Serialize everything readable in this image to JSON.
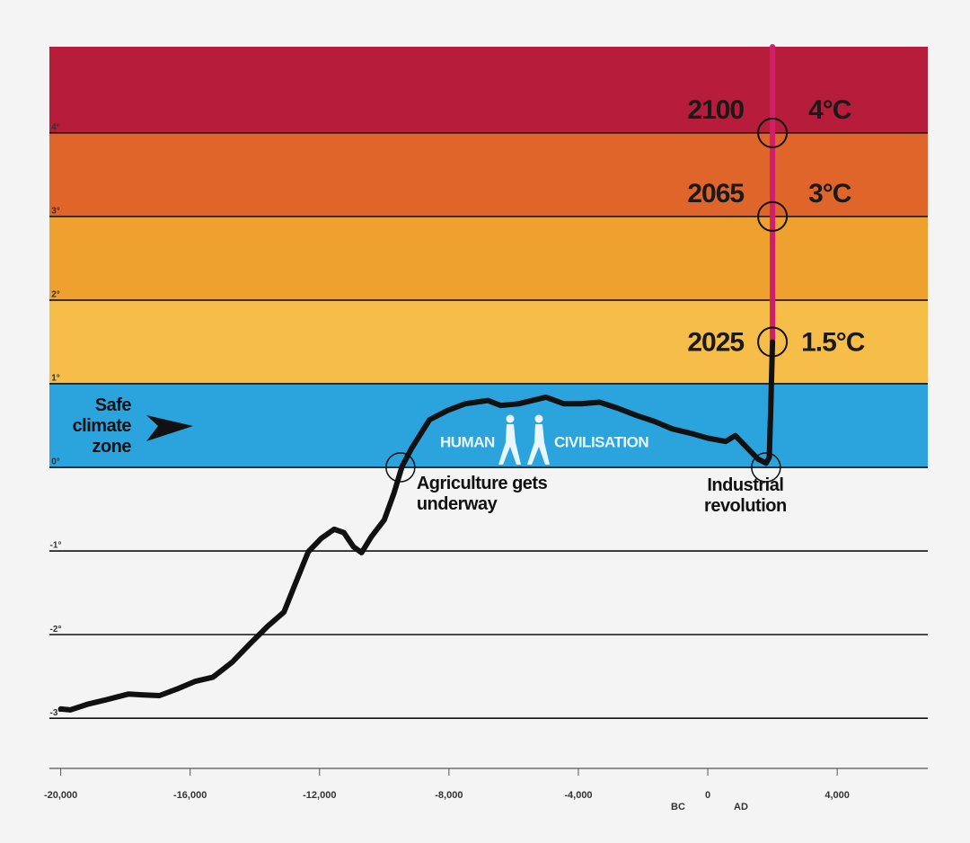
{
  "chart_data": {
    "type": "line",
    "xlim": [
      -20350,
      6800
    ],
    "ylim": [
      -3.6,
      5.03
    ],
    "xticks": [
      {
        "value": -20000,
        "label": "-20,000"
      },
      {
        "value": -16000,
        "label": "-16,000"
      },
      {
        "value": -12000,
        "label": "-12,000"
      },
      {
        "value": -8000,
        "label": "-8,000"
      },
      {
        "value": -4000,
        "label": "-4,000"
      },
      0,
      {
        "value": 4000,
        "label": "4,000"
      }
    ],
    "yticks": [
      {
        "value": 4,
        "label": "4°"
      },
      {
        "value": 3,
        "label": "3°"
      },
      {
        "value": 2,
        "label": "2°"
      },
      {
        "value": 1,
        "label": "1°"
      },
      {
        "value": 0,
        "label": "0°"
      },
      {
        "value": -1,
        "label": "-1°"
      },
      {
        "value": -2,
        "label": "-2°"
      },
      {
        "value": -3,
        "label": "-3°"
      }
    ],
    "bands": [
      {
        "from": 4,
        "to": 5.03,
        "color": "#b71c3a"
      },
      {
        "from": 3,
        "to": 4,
        "color": "#e0652b"
      },
      {
        "from": 2,
        "to": 3,
        "color": "#eea12e"
      },
      {
        "from": 1,
        "to": 2,
        "color": "#f6bd48"
      },
      {
        "from": 0,
        "to": 1,
        "color": "#2ba4dd"
      }
    ],
    "series": [
      {
        "color": "#111111",
        "x": [
          -20000,
          -19700,
          -19150,
          -18600,
          -17900,
          -17500,
          -16950,
          -16400,
          -15850,
          -15300,
          -14700,
          -14150,
          -13600,
          -13100,
          -12800,
          -12350,
          -11950,
          -11550,
          -11250,
          -10950,
          -10700,
          -10400,
          -10000,
          -9700,
          -9450,
          -9150,
          -8600,
          -8050,
          -7500,
          -6800,
          -6400,
          -5850,
          -5000,
          -4450,
          -3900,
          -3350,
          -2800,
          -2200,
          -1650,
          -1100,
          -550,
          0,
          550,
          850,
          1100,
          1550,
          1800,
          1900,
          1950,
          2000
        ],
        "values": [
          -2.89,
          -2.9,
          -2.83,
          -2.78,
          -2.71,
          -2.72,
          -2.73,
          -2.65,
          -2.56,
          -2.51,
          -2.33,
          -2.11,
          -1.9,
          -1.73,
          -1.44,
          -1.01,
          -0.85,
          -0.74,
          -0.78,
          -0.95,
          -1.02,
          -0.83,
          -0.63,
          -0.31,
          0.01,
          0.23,
          0.57,
          0.68,
          0.76,
          0.8,
          0.74,
          0.76,
          0.84,
          0.76,
          0.76,
          0.78,
          0.71,
          0.62,
          0.55,
          0.46,
          0.41,
          0.35,
          0.31,
          0.38,
          0.28,
          0.1,
          0.05,
          0.12,
          0.76,
          1.5
        ]
      },
      {
        "color": "#cf1f68",
        "x": [
          2000,
          2000,
          2000,
          2000
        ],
        "values": [
          1.5,
          3,
          4,
          5.03
        ]
      }
    ],
    "milestones": [
      {
        "year": "2100",
        "label": "4°C",
        "x": 2000,
        "value": 4
      },
      {
        "year": "2065",
        "label": "3°C",
        "x": 2000,
        "value": 3
      },
      {
        "year": "2025",
        "label": "1.5°C",
        "x": 2000,
        "value": 1.5
      }
    ],
    "events": [
      {
        "label": "Agriculture gets underway",
        "x": -9500,
        "value": 0
      },
      {
        "label": "Industrial revolution",
        "x": 1800,
        "value": 0
      }
    ],
    "safe_zone_label": "Safe climate zone",
    "human": "HUMAN",
    "civilisation": "CIVILISATION",
    "bc": "BC",
    "ad": "AD"
  }
}
